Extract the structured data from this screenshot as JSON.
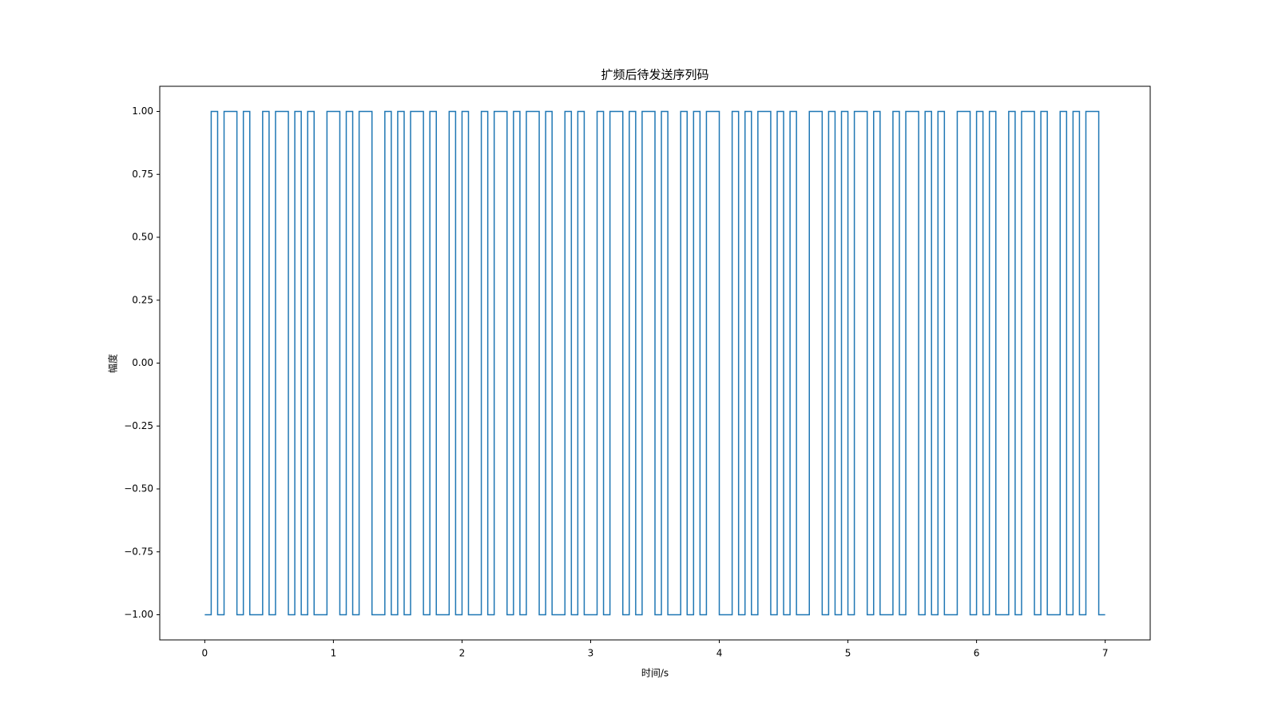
{
  "chart_data": {
    "type": "line",
    "drawstyle": "steps-post",
    "title": "扩频后待发送序列码",
    "xlabel": "时间/s",
    "ylabel": "幅度",
    "xlim": [
      -0.35,
      7.35
    ],
    "ylim": [
      -1.1,
      1.1
    ],
    "xticks": [
      0,
      1,
      2,
      3,
      4,
      5,
      6,
      7
    ],
    "yticks": [
      {
        "value": -1,
        "label": "−1.00"
      },
      {
        "value": -0.75,
        "label": "−0.75"
      },
      {
        "value": -0.5,
        "label": "−0.50"
      },
      {
        "value": -0.25,
        "label": "−0.25"
      },
      {
        "value": 0,
        "label": "0.00"
      },
      {
        "value": 0.25,
        "label": "0.25"
      },
      {
        "value": 0.5,
        "label": "0.50"
      },
      {
        "value": 0.75,
        "label": "0.75"
      },
      {
        "value": 1,
        "label": "1.00"
      }
    ],
    "x": [
      0,
      0.05,
      0.1,
      0.15,
      0.2,
      0.25,
      0.3,
      0.35,
      0.4,
      0.45,
      0.5,
      0.55,
      0.6,
      0.65,
      0.7,
      0.75,
      0.8,
      0.85,
      0.9,
      0.95,
      1,
      1.05,
      1.1,
      1.15,
      1.2,
      1.25,
      1.3,
      1.35,
      1.4,
      1.45,
      1.5,
      1.55,
      1.6,
      1.65,
      1.7,
      1.75,
      1.8,
      1.85,
      1.9,
      1.95,
      2,
      2.05,
      2.1,
      2.15,
      2.2,
      2.25,
      2.3,
      2.35,
      2.4,
      2.45,
      2.5,
      2.55,
      2.6,
      2.65,
      2.7,
      2.75,
      2.8,
      2.85,
      2.9,
      2.95,
      3,
      3.05,
      3.1,
      3.15,
      3.2,
      3.25,
      3.3,
      3.35,
      3.4,
      3.45,
      3.5,
      3.55,
      3.6,
      3.65,
      3.7,
      3.75,
      3.8,
      3.85,
      3.9,
      3.95,
      4,
      4.05,
      4.1,
      4.15,
      4.2,
      4.25,
      4.3,
      4.35,
      4.4,
      4.45,
      4.5,
      4.55,
      4.6,
      4.65,
      4.7,
      4.75,
      4.8,
      4.85,
      4.9,
      4.95,
      5,
      5.05,
      5.1,
      5.15,
      5.2,
      5.25,
      5.3,
      5.35,
      5.4,
      5.45,
      5.5,
      5.55,
      5.6,
      5.65,
      5.7,
      5.75,
      5.8,
      5.85,
      5.9,
      5.95,
      6,
      6.05,
      6.1,
      6.15,
      6.2,
      6.25,
      6.3,
      6.35,
      6.4,
      6.45,
      6.5,
      6.55,
      6.6,
      6.65,
      6.7,
      6.75,
      6.8,
      6.85,
      6.9,
      6.95,
      7
    ],
    "series": [
      {
        "color": "#1f77b4",
        "values": [
          -1,
          1,
          -1,
          1,
          1,
          -1,
          1,
          -1,
          -1,
          1,
          -1,
          1,
          1,
          -1,
          1,
          -1,
          1,
          -1,
          -1,
          1,
          1,
          -1,
          1,
          -1,
          1,
          1,
          -1,
          -1,
          1,
          -1,
          1,
          -1,
          1,
          1,
          -1,
          1,
          -1,
          -1,
          1,
          -1,
          1,
          -1,
          -1,
          1,
          -1,
          1,
          1,
          -1,
          1,
          -1,
          1,
          1,
          -1,
          1,
          -1,
          -1,
          1,
          -1,
          1,
          -1,
          -1,
          1,
          -1,
          1,
          1,
          -1,
          1,
          -1,
          1,
          1,
          -1,
          1,
          -1,
          -1,
          1,
          -1,
          1,
          -1,
          1,
          1,
          -1,
          -1,
          1,
          -1,
          1,
          -1,
          1,
          1,
          -1,
          1,
          -1,
          1,
          -1,
          -1,
          1,
          1,
          -1,
          1,
          -1,
          1,
          -1,
          1,
          1,
          -1,
          1,
          -1,
          -1,
          1,
          -1,
          1,
          1,
          -1,
          1,
          -1,
          1,
          -1,
          -1,
          1,
          1,
          -1,
          1,
          -1,
          1,
          -1,
          -1,
          1,
          -1,
          1,
          1,
          -1,
          1,
          -1,
          -1,
          1,
          -1,
          1,
          -1,
          1,
          1,
          -1,
          -1
        ]
      }
    ]
  }
}
